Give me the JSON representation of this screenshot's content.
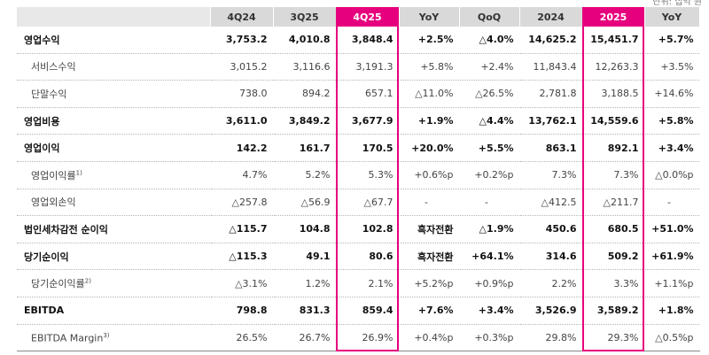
{
  "unit_note": "단위: 십억 원",
  "header": [
    "",
    "4Q24",
    "3Q25",
    "4Q25",
    "YoY",
    "QoQ",
    "2024",
    "2025",
    "YoY"
  ],
  "rows": [
    {
      "label": "영업수익",
      "sup": "",
      "kind": "main",
      "v": [
        "3,753.2",
        "4,010.8",
        "3,848.4",
        "+2.5%",
        "△4.0%",
        "14,625.2",
        "15,451.7",
        "+5.7%"
      ]
    },
    {
      "label": "서비스수익",
      "sup": "",
      "kind": "sub",
      "v": [
        "3,015.2",
        "3,116.6",
        "3,191.3",
        "+5.8%",
        "+2.4%",
        "11,843.4",
        "12,263.3",
        "+3.5%"
      ]
    },
    {
      "label": "단말수익",
      "sup": "",
      "kind": "sub",
      "v": [
        "738.0",
        "894.2",
        "657.1",
        "△11.0%",
        "△26.5%",
        "2,781.8",
        "3,188.5",
        "+14.6%"
      ]
    },
    {
      "label": "영업비용",
      "sup": "",
      "kind": "main",
      "v": [
        "3,611.0",
        "3,849.2",
        "3,677.9",
        "+1.9%",
        "△4.4%",
        "13,762.1",
        "14,559.6",
        "+5.8%"
      ]
    },
    {
      "label": "영업이익",
      "sup": "",
      "kind": "main",
      "v": [
        "142.2",
        "161.7",
        "170.5",
        "+20.0%",
        "+5.5%",
        "863.1",
        "892.1",
        "+3.4%"
      ]
    },
    {
      "label": "영업이익률",
      "sup": "1)",
      "kind": "sub",
      "v": [
        "4.7%",
        "5.2%",
        "5.3%",
        "+0.6%p",
        "+0.2%p",
        "7.3%",
        "7.3%",
        "△0.0%p"
      ]
    },
    {
      "label": "영업외손익",
      "sup": "",
      "kind": "sub",
      "v": [
        "△257.8",
        "△56.9",
        "△67.7",
        "-",
        "-",
        "△412.5",
        "△211.7",
        "-"
      ]
    },
    {
      "label": "법인세차감전 순이익",
      "sup": "",
      "kind": "main",
      "v": [
        "△115.7",
        "104.8",
        "102.8",
        "흑자전환",
        "△1.9%",
        "450.6",
        "680.5",
        "+51.0%"
      ]
    },
    {
      "label": "당기순이익",
      "sup": "",
      "kind": "main",
      "v": [
        "△115.3",
        "49.1",
        "80.6",
        "흑자전환",
        "+64.1%",
        "314.6",
        "509.2",
        "+61.9%"
      ]
    },
    {
      "label": "당기순이익률",
      "sup": "2)",
      "kind": "sub",
      "v": [
        "△3.1%",
        "1.2%",
        "2.1%",
        "+5.2%p",
        "+0.9%p",
        "2.2%",
        "3.3%",
        "+1.1%p"
      ]
    },
    {
      "label": "EBITDA",
      "sup": "",
      "kind": "main",
      "v": [
        "798.8",
        "831.3",
        "859.4",
        "+7.6%",
        "+3.4%",
        "3,526.9",
        "3,589.2",
        "+1.8%"
      ]
    },
    {
      "label": "EBITDA Margin",
      "sup": "3)",
      "kind": "sub",
      "v": [
        "26.5%",
        "26.7%",
        "26.9%",
        "+0.4%p",
        "+0.3%p",
        "29.8%",
        "29.3%",
        "△0.5%p"
      ]
    }
  ],
  "highlight_columns": [
    "4Q25",
    "2025"
  ],
  "highlight_color": "#e6007e",
  "header_bg": "#d9d9d9"
}
